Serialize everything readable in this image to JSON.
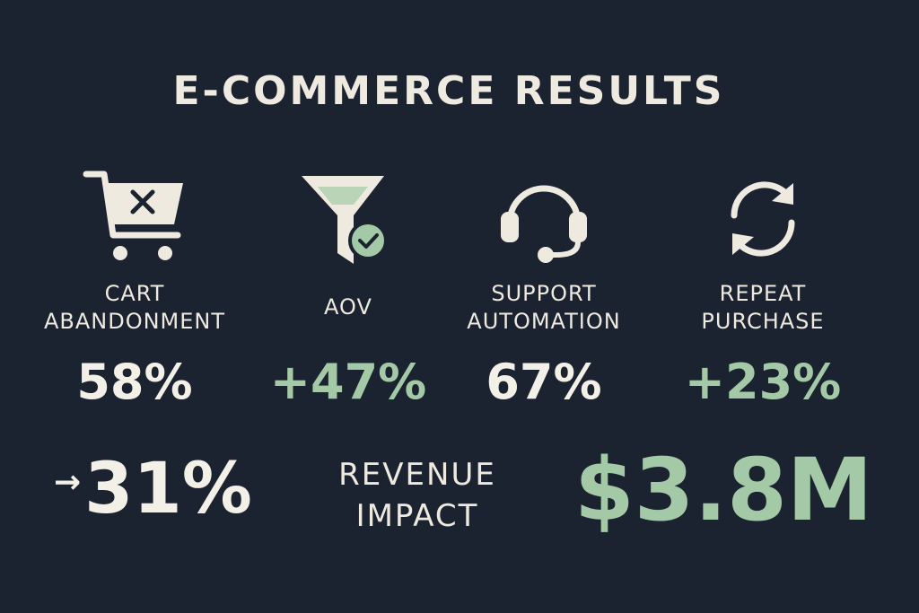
{
  "title": "E-COMMERCE RESULTS",
  "colors": {
    "background": "#1b2230",
    "text": "#eeeae0",
    "accent_green": "#a3c9a6"
  },
  "metrics": [
    {
      "icon": "shopping-cart-x-icon",
      "label_line1": "CART",
      "label_line2": "ABANDONMENT",
      "value": "58%"
    },
    {
      "icon": "funnel-check-icon",
      "label_line1": "AOV",
      "label_line2": "",
      "value": "+47%"
    },
    {
      "icon": "headset-icon",
      "label_line1": "SUPPORT",
      "label_line2": "AUTOMATION",
      "value": "67%"
    },
    {
      "icon": "refresh-cycle-icon",
      "label_line1": "REPEAT",
      "label_line2": "PURCHASE",
      "value": "+23%"
    }
  ],
  "cart_abandonment_after": {
    "arrow": "→",
    "value": "31%"
  },
  "revenue": {
    "label_line1": "REVENUE",
    "label_line2": "IMPACT",
    "value": "$3.8M"
  }
}
